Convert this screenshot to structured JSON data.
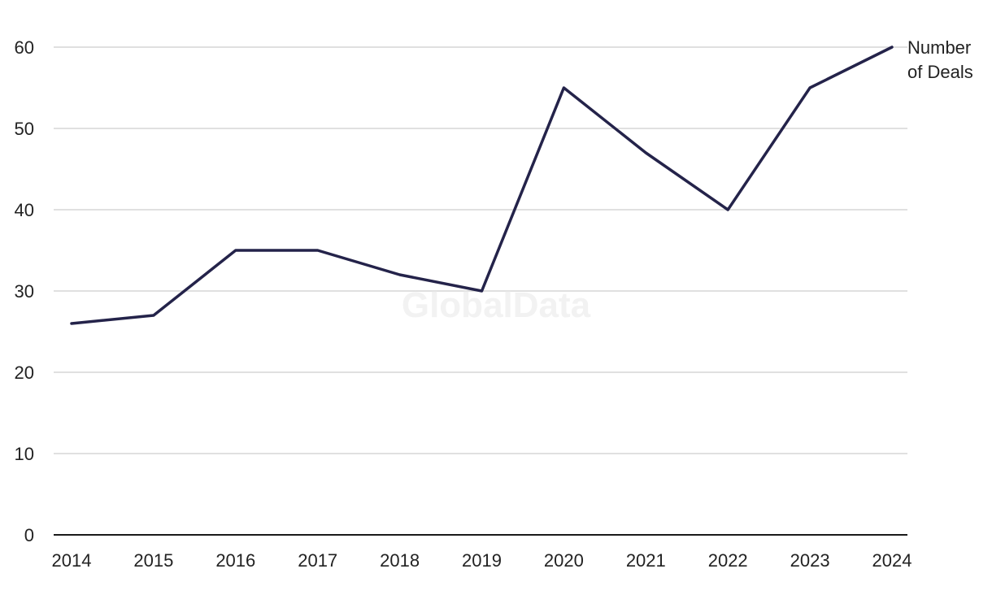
{
  "watermark": "GlobalData",
  "chart_data": {
    "type": "line",
    "title": "",
    "xlabel": "",
    "ylabel": "",
    "categories": [
      "2014",
      "2015",
      "2016",
      "2017",
      "2018",
      "2019",
      "2020",
      "2021",
      "2022",
      "2023",
      "2024"
    ],
    "series": [
      {
        "name": "Number of Deals",
        "label_lines": [
          "Number",
          "of Deals"
        ],
        "color": "#24234a",
        "values": [
          26,
          27,
          35,
          35,
          32,
          30,
          55,
          47,
          40,
          55,
          60
        ]
      }
    ],
    "ylim": [
      0,
      60
    ],
    "yticks": [
      0,
      10,
      20,
      30,
      40,
      50,
      60
    ],
    "grid": true,
    "legend": "end-of-line label"
  }
}
